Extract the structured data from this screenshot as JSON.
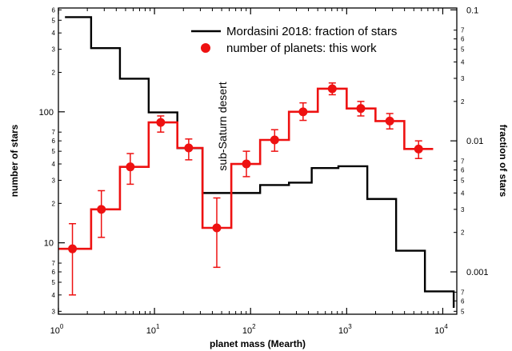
{
  "chart_data": {
    "type": "line",
    "xlabel": "planet mass (Mearth)",
    "ylabel": "number of stars",
    "ylabel_right": "fraction of stars",
    "x_scale": "log",
    "y_scale": "log",
    "xlim": [
      1,
      14000
    ],
    "ylim_left": [
      2.85,
      620
    ],
    "ylim_right": [
      0.000475,
      0.1033
    ],
    "grid": false,
    "legend": "top-right",
    "x_ticks": [
      {
        "value": 1,
        "base": "10",
        "exp": "0"
      },
      {
        "value": 10,
        "base": "10",
        "exp": "1"
      },
      {
        "value": 100,
        "base": "10",
        "exp": "2"
      },
      {
        "value": 1000,
        "base": "10",
        "exp": "3"
      },
      {
        "value": 10000,
        "base": "10",
        "exp": "4"
      }
    ],
    "y_left_major_ticks": [
      {
        "value": 10,
        "label": "10"
      },
      {
        "value": 100,
        "label": "100"
      }
    ],
    "y_left_minor_ticks": [
      {
        "value": 3,
        "label": "3"
      },
      {
        "value": 4,
        "label": "4"
      },
      {
        "value": 5,
        "label": "5"
      },
      {
        "value": 6,
        "label": "6"
      },
      {
        "value": 7,
        "label": "7"
      },
      {
        "value": 20,
        "label": "2"
      },
      {
        "value": 30,
        "label": "3"
      },
      {
        "value": 40,
        "label": "4"
      },
      {
        "value": 50,
        "label": "5"
      },
      {
        "value": 60,
        "label": "6"
      },
      {
        "value": 70,
        "label": "7"
      },
      {
        "value": 200,
        "label": "2"
      },
      {
        "value": 300,
        "label": "3"
      },
      {
        "value": 400,
        "label": "4"
      },
      {
        "value": 500,
        "label": "5"
      },
      {
        "value": 600,
        "label": "6"
      }
    ],
    "y_right_major_ticks": [
      {
        "value": 0.001,
        "label": "0.001"
      },
      {
        "value": 0.01,
        "label": "0.01"
      },
      {
        "value": 0.1,
        "label": "0.1"
      }
    ],
    "y_right_minor_ticks": [
      {
        "value": 0.0005,
        "label": "5"
      },
      {
        "value": 0.0006,
        "label": "6"
      },
      {
        "value": 0.0007,
        "label": "7"
      },
      {
        "value": 0.002,
        "label": "2"
      },
      {
        "value": 0.003,
        "label": "3"
      },
      {
        "value": 0.004,
        "label": "4"
      },
      {
        "value": 0.005,
        "label": "5"
      },
      {
        "value": 0.006,
        "label": "6"
      },
      {
        "value": 0.007,
        "label": "7"
      },
      {
        "value": 0.02,
        "label": "2"
      },
      {
        "value": 0.03,
        "label": "3"
      },
      {
        "value": 0.04,
        "label": "4"
      },
      {
        "value": 0.05,
        "label": "5"
      },
      {
        "value": 0.06,
        "label": "6"
      },
      {
        "value": 0.07,
        "label": "7"
      }
    ],
    "series": [
      {
        "name": "Mordasini 2018: fraction of stars",
        "axis": "right",
        "color": "#000000",
        "style": "step",
        "edges": [
          1.17,
          2.19,
          4.37,
          8.7,
          17.3,
          31.6,
          63.0,
          125.7,
          250.8,
          432.7,
          820.0,
          1640.0,
          3270.0,
          6520.0,
          13000.0
        ],
        "values": [
          0.088,
          0.051,
          0.0298,
          0.0165,
          0.0088,
          0.004,
          0.004,
          0.0046,
          0.0048,
          0.0062,
          0.0064,
          0.0036,
          0.00145,
          0.00071
        ]
      },
      {
        "name": "number of planets: this work",
        "axis": "left",
        "color": "#ee1111",
        "style": "step",
        "edges": [
          1.0,
          2.19,
          4.37,
          8.7,
          17.3,
          31.6,
          63.0,
          125.7,
          250.8,
          500.5,
          1000.0,
          1995.0,
          3980.0,
          7940.0
        ],
        "values": [
          9,
          18,
          38,
          83,
          53,
          13,
          40,
          61,
          100,
          150,
          106,
          85,
          52
        ]
      }
    ],
    "points": {
      "series": "number of planets: this work",
      "x": [
        1.4,
        2.8,
        5.6,
        11.6,
        22.7,
        44.5,
        90.5,
        178,
        352,
        708,
        1403,
        2807,
        5602
      ],
      "y": [
        9,
        18,
        38,
        83,
        53,
        13,
        40,
        61,
        100,
        150,
        106,
        85,
        52
      ],
      "err_low": [
        4,
        11,
        28,
        70,
        43,
        6.5,
        32,
        50,
        86,
        135,
        93,
        74,
        44
      ],
      "err_high": [
        14,
        25,
        48,
        93,
        62,
        22,
        50,
        73,
        117,
        166,
        120,
        97,
        60
      ]
    },
    "annotations": [
      {
        "text": "sub-Saturn desert"
      }
    ]
  }
}
